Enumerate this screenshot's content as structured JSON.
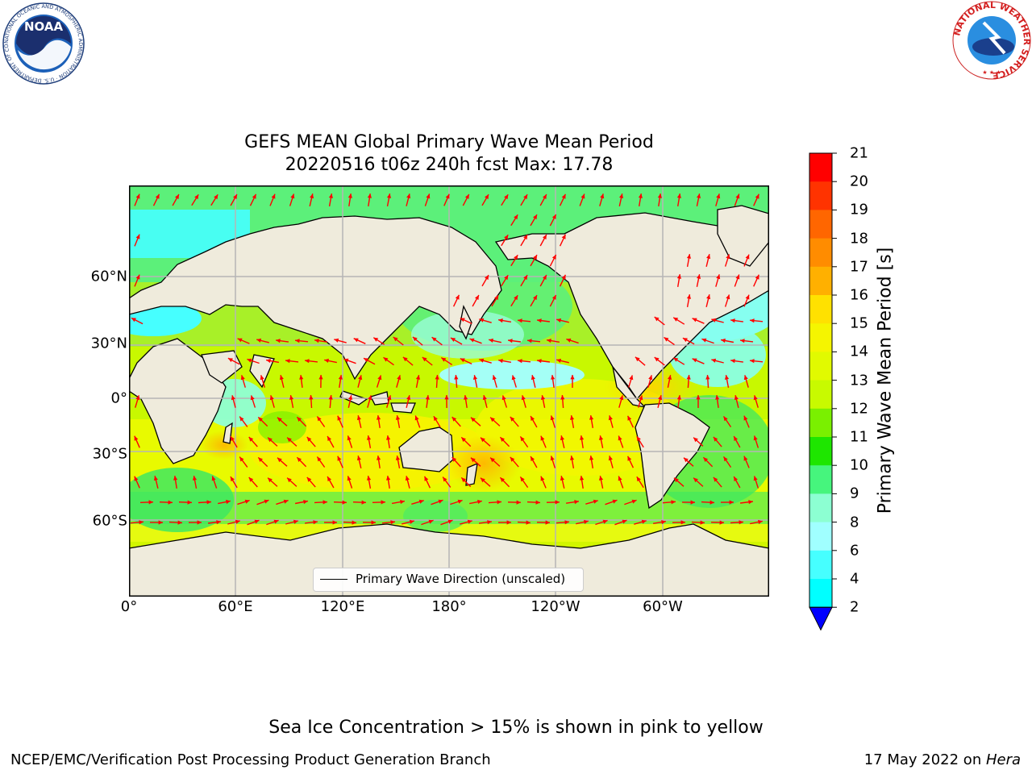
{
  "title": {
    "line1": "GEFS MEAN Global Primary Wave Mean Period",
    "line2": "20220516 t06z 240h fcst   Max: 17.78"
  },
  "map": {
    "projection": "plate-carree",
    "lon_range": [
      0,
      360
    ],
    "lat_range": [
      -90,
      90
    ],
    "lon_ticks": [
      "0°",
      "60°E",
      "120°E",
      "180°",
      "120°W",
      "60°W"
    ],
    "lat_ticks": [
      "60°N",
      "30°N",
      "0°",
      "30°S",
      "60°S"
    ],
    "gridlines": true,
    "land_color": "#efebdc",
    "vector_color": "#ff0000"
  },
  "legend": {
    "label": "Primary Wave Direction (unscaled)",
    "placement": "bottom-center"
  },
  "colorbar": {
    "label": "Primary Wave Mean Period [s]",
    "ticks": [
      "21",
      "20",
      "19",
      "18",
      "17",
      "16",
      "15",
      "14",
      "13",
      "12",
      "11",
      "10",
      "9",
      "8",
      "6",
      "4",
      "2"
    ],
    "colors": [
      "#ff0000",
      "#ff3300",
      "#ff6600",
      "#ff8c00",
      "#ffb000",
      "#ffe100",
      "#f5f500",
      "#e1fa00",
      "#c8fa00",
      "#7af000",
      "#1ee600",
      "#46f57d",
      "#8cffd2",
      "#a0ffff",
      "#46ffff",
      "#00ffff",
      "#00e6ff",
      "#0078ff"
    ],
    "extend_color": "#0000ff",
    "extend": "min"
  },
  "footer": {
    "note": "Sea Ice Concentration > 15% is shown in pink to yellow",
    "left": "NCEP/EMC/Verification Post Processing Product Generation Branch",
    "date": "17 May 2022 on ",
    "host": "Hera"
  },
  "logos": {
    "noaa": {
      "text": "NOAA",
      "ring_text": "NATIONAL OCEANIC AND ATMOSPHERIC ADMINISTRATION · U.S. DEPARTMENT OF COMMERCE"
    },
    "nws": {
      "ring_text": "NATIONAL WEATHER SERVICE"
    }
  }
}
